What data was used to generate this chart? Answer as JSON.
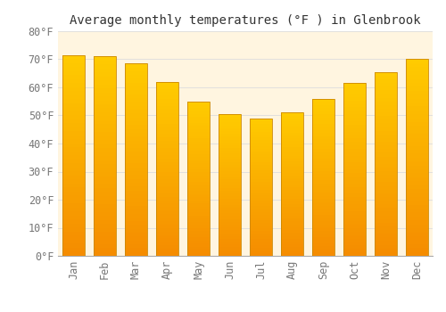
{
  "title": "Average monthly temperatures (°F ) in Glenbrook",
  "months": [
    "Jan",
    "Feb",
    "Mar",
    "Apr",
    "May",
    "Jun",
    "Jul",
    "Aug",
    "Sep",
    "Oct",
    "Nov",
    "Dec"
  ],
  "values": [
    71.5,
    71.0,
    68.5,
    62.0,
    55.0,
    50.5,
    49.0,
    51.0,
    56.0,
    61.5,
    65.5,
    70.0
  ],
  "bar_color_top": "#FBB829",
  "bar_color_bottom": "#F5A800",
  "bar_edge_color": "#CC8800",
  "plot_bg_color": "#FFF5E0",
  "outer_bg_color": "#FFFFFF",
  "grid_color": "#DDDDDD",
  "text_color": "#777777",
  "title_color": "#333333",
  "ylim": [
    0,
    80
  ],
  "yticks": [
    0,
    10,
    20,
    30,
    40,
    50,
    60,
    70,
    80
  ],
  "title_fontsize": 10,
  "tick_fontsize": 8.5
}
